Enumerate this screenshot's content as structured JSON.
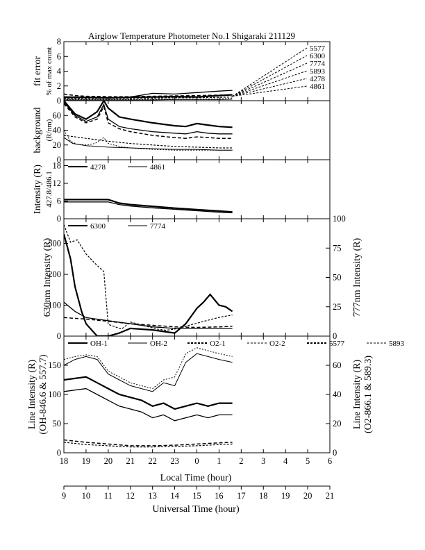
{
  "chart_data": {
    "type": "line",
    "title": "Airglow Temperature Photometer No.1  Shigaraki  211129",
    "xlabel_local": "Local Time (hour)",
    "xlabel_ut": "Universal Time (hour)",
    "x_local_ticks": [
      "18",
      "19",
      "20",
      "21",
      "22",
      "23",
      "0",
      "1",
      "2",
      "3",
      "4",
      "5",
      "6"
    ],
    "x_ut_ticks": [
      "9",
      "10",
      "11",
      "12",
      "13",
      "14",
      "15",
      "16",
      "17",
      "18",
      "19",
      "20",
      "21"
    ],
    "x_range_ut": [
      9,
      21
    ],
    "panels": [
      {
        "id": "fit",
        "ylabel": [
          "fit error",
          "% of max count"
        ],
        "ylim": [
          0,
          8
        ],
        "yticks": [
          "0",
          "2",
          "4",
          "6",
          "8"
        ],
        "legend": [
          "5577",
          "6300",
          "7774",
          "5893",
          "4278",
          "4861"
        ],
        "series": [
          {
            "name": "5577",
            "x": [
              9,
              10,
              11,
              12,
              13,
              14,
              15,
              16,
              16.6
            ],
            "y": [
              0.5,
              0.45,
              0.4,
              0.45,
              0.5,
              0.55,
              0.5,
              0.7,
              0.8
            ]
          },
          {
            "name": "6300",
            "x": [
              9,
              10,
              11,
              12,
              13,
              14,
              15,
              16,
              16.6
            ],
            "y": [
              0.4,
              0.4,
              0.35,
              0.5,
              1.0,
              0.9,
              1.1,
              1.3,
              1.4
            ]
          },
          {
            "name": "7774",
            "x": [
              9,
              9.5,
              10,
              11,
              12,
              13,
              14,
              15,
              16,
              16.6
            ],
            "y": [
              0.9,
              0.7,
              0.6,
              0.55,
              0.55,
              0.6,
              0.65,
              0.7,
              0.75,
              0.8
            ]
          },
          {
            "name": "5893",
            "x": [
              9,
              10,
              11,
              12,
              13,
              14,
              15,
              16,
              16.6
            ],
            "y": [
              0.3,
              0.3,
              0.3,
              0.35,
              0.35,
              0.4,
              0.4,
              0.45,
              0.5
            ]
          },
          {
            "name": "4278",
            "x": [
              9,
              10,
              11,
              12,
              13,
              14,
              15,
              16,
              16.6
            ],
            "y": [
              0.15,
              0.15,
              0.15,
              0.2,
              0.2,
              0.2,
              0.2,
              0.25,
              0.3
            ]
          },
          {
            "name": "4861",
            "x": [
              9,
              10,
              11,
              12,
              13,
              14,
              15,
              16,
              16.6
            ],
            "y": [
              0.1,
              0.1,
              0.1,
              0.1,
              0.1,
              0.15,
              0.15,
              0.15,
              0.2
            ]
          }
        ]
      },
      {
        "id": "background",
        "ylabel": [
          "background",
          "(R/nm)"
        ],
        "ylim": [
          0,
          80
        ],
        "yticks": [
          "0",
          "20",
          "40",
          "60"
        ],
        "series": [
          {
            "name": "a",
            "x": [
              9,
              9.5,
              10,
              10.5,
              10.8,
              11,
              11.5,
              12,
              13,
              14,
              14.5,
              15,
              15.5,
              16,
              16.6
            ],
            "y": [
              80,
              62,
              55,
              65,
              80,
              70,
              58,
              55,
              50,
              46,
              45,
              49,
              47,
              45,
              44
            ]
          },
          {
            "name": "b",
            "x": [
              9,
              9.5,
              10,
              10.5,
              10.8,
              11,
              11.5,
              12,
              13,
              14,
              14.5,
              15,
              15.5,
              16,
              16.6
            ],
            "y": [
              78,
              60,
              52,
              58,
              75,
              55,
              45,
              42,
              38,
              36,
              35,
              38,
              36,
              35,
              35
            ]
          },
          {
            "name": "c",
            "x": [
              9,
              9.5,
              10,
              10.5,
              10.8,
              11,
              11.5,
              12,
              13,
              14,
              14.5,
              15,
              15.5,
              16,
              16.6
            ],
            "y": [
              76,
              58,
              50,
              55,
              72,
              50,
              42,
              38,
              33,
              30,
              29,
              31,
              30,
              29,
              29
            ]
          },
          {
            "name": "d",
            "x": [
              9,
              10,
              11,
              12,
              13,
              14,
              15,
              16,
              16.6
            ],
            "y": [
              33,
              29,
              25,
              22,
              20,
              18,
              17,
              16,
              16
            ]
          },
          {
            "name": "e",
            "x": [
              9,
              9.3,
              9.6,
              10,
              10.4,
              10.8,
              11,
              11.5,
              12,
              13,
              14,
              15,
              16,
              16.6
            ],
            "y": [
              40,
              25,
              21,
              20,
              22,
              30,
              22,
              18,
              16,
              14,
              13,
              13,
              13,
              13
            ]
          },
          {
            "name": "f",
            "x": [
              9,
              9.4,
              10,
              11,
              12,
              13,
              14,
              15,
              16,
              16.6
            ],
            "y": [
              30,
              22,
              19,
              17,
              16,
              15,
              14,
              14,
              13,
              13
            ]
          }
        ]
      },
      {
        "id": "blue",
        "ylabel": [
          "Intensity (R)",
          "427.8/486.1"
        ],
        "ylim": [
          0,
          20
        ],
        "yticks": [
          "0",
          "6",
          "12",
          "18"
        ],
        "legend": [
          "4278",
          "4861"
        ],
        "series": [
          {
            "name": "4278",
            "x": [
              9,
              10,
              11,
              11.5,
              12,
              13,
              14,
              15,
              16,
              16.6
            ],
            "y": [
              6.5,
              6.5,
              6.5,
              5.3,
              4.8,
              4.2,
              3.6,
              3.1,
              2.6,
              2.3
            ]
          },
          {
            "name": "4861",
            "x": [
              9,
              10,
              11,
              11.5,
              12,
              13,
              14,
              15,
              16,
              16.6
            ],
            "y": [
              5.7,
              5.7,
              5.7,
              4.8,
              4.3,
              3.7,
              3.2,
              2.7,
              2.2,
              2.0
            ]
          }
        ]
      },
      {
        "id": "red",
        "ylabel_left": "630nm Intensity (R)",
        "ylabel_right": "777nm Intensity (R)",
        "ylim_left": [
          0,
          380
        ],
        "ylim_right": [
          0,
          100
        ],
        "yticks_left": [
          "0",
          "100",
          "200",
          "300"
        ],
        "yticks_right": [
          "0",
          "25",
          "50",
          "75",
          "100"
        ],
        "legend": [
          "6300",
          "7774"
        ],
        "series": [
          {
            "name": "6300",
            "axis": "left",
            "x": [
              9,
              9.3,
              9.5,
              9.8,
              10,
              10.5,
              11,
              11.5,
              12,
              13,
              14,
              14.5,
              14.8,
              15,
              15.3,
              15.6,
              16,
              16.3,
              16.6
            ],
            "y": [
              330,
              250,
              160,
              80,
              40,
              0,
              0,
              10,
              25,
              20,
              10,
              40,
              70,
              90,
              110,
              135,
              100,
              95,
              80
            ]
          },
          {
            "name": "7774",
            "axis": "left",
            "x": [
              9,
              9.5,
              10,
              11,
              12,
              13,
              14,
              15,
              16,
              16.6
            ],
            "y": [
              110,
              80,
              60,
              50,
              40,
              30,
              25,
              25,
              25,
              25
            ]
          },
          {
            "name": "7774-b",
            "axis": "left",
            "x": [
              9,
              10,
              11,
              12,
              13,
              14,
              15,
              16,
              16.6
            ],
            "y": [
              60,
              55,
              48,
              40,
              35,
              30,
              28,
              30,
              32
            ]
          },
          {
            "name": "dashed",
            "axis": "right",
            "x": [
              9,
              9.3,
              9.6,
              10,
              10.4,
              10.8,
              11,
              11.3,
              11.6,
              12,
              12.4,
              12.8,
              13.2,
              13.6,
              14,
              14.4,
              14.8,
              15.2,
              15.6,
              16,
              16.3,
              16.6
            ],
            "y": [
              95,
              80,
              82,
              70,
              62,
              55,
              10,
              8,
              6,
              12,
              10,
              8,
              6,
              5,
              6,
              8,
              10,
              12,
              14,
              16,
              17,
              18
            ]
          }
        ]
      },
      {
        "id": "line",
        "ylabel_left": [
          "Line Intensity (R)",
          "(OH-846.6 & 557.7)"
        ],
        "ylabel_right": [
          "Line Intensity (R)",
          "(O2-866.1 & 589.3)"
        ],
        "ylim_left": [
          0,
          200
        ],
        "ylim_right": [
          0,
          80
        ],
        "yticks_left": [
          "0",
          "50",
          "100",
          "150"
        ],
        "yticks_right": [
          "0",
          "20",
          "40",
          "60"
        ],
        "legend": [
          "OH-1",
          "OH-2",
          "O2-1",
          "O2-2",
          "5577",
          "5893"
        ],
        "series": [
          {
            "name": "OH-1",
            "axis": "left",
            "x": [
              9,
              10,
              10.5,
              11,
              11.5,
              12,
              12.5,
              13,
              13.5,
              14,
              14.5,
              15,
              15.5,
              16,
              16.6
            ],
            "y": [
              125,
              130,
              120,
              110,
              100,
              95,
              90,
              80,
              85,
              75,
              80,
              85,
              80,
              85,
              85
            ]
          },
          {
            "name": "OH-2",
            "axis": "left",
            "x": [
              9,
              10,
              10.5,
              11,
              11.5,
              12,
              12.5,
              13,
              13.5,
              14,
              14.5,
              15,
              15.5,
              16,
              16.6
            ],
            "y": [
              105,
              110,
              100,
              90,
              80,
              75,
              70,
              60,
              65,
              55,
              60,
              65,
              60,
              65,
              65
            ]
          },
          {
            "name": "O2-1",
            "axis": "left",
            "x": [
              9,
              10,
              11,
              12,
              13,
              14,
              15,
              16,
              16.6
            ],
            "y": [
              22,
              18,
              15,
              12,
              12,
              13,
              15,
              17,
              18
            ]
          },
          {
            "name": "O2-2",
            "axis": "left",
            "x": [
              9,
              10,
              11,
              12,
              13,
              14,
              15,
              16,
              16.6
            ],
            "y": [
              18,
              14,
              12,
              10,
              10,
              11,
              12,
              14,
              15
            ]
          },
          {
            "name": "5577",
            "axis": "left",
            "x": [
              9,
              9.5,
              10,
              10.5,
              11,
              11.5,
              12,
              12.5,
              13,
              13.5,
              14,
              14.5,
              15,
              15.5,
              16,
              16.6
            ],
            "y": [
              160,
              165,
              168,
              165,
              140,
              130,
              120,
              115,
              110,
              125,
              130,
              170,
              180,
              175,
              170,
              165
            ]
          },
          {
            "name": "5893",
            "axis": "left",
            "x": [
              9,
              9.5,
              10,
              10.5,
              11,
              11.5,
              12,
              12.5,
              13,
              13.5,
              14,
              14.5,
              15,
              15.5,
              16,
              16.6
            ],
            "y": [
              150,
              160,
              165,
              160,
              135,
              125,
              115,
              110,
              105,
              120,
              115,
              155,
              170,
              165,
              160,
              155
            ]
          }
        ]
      }
    ]
  }
}
